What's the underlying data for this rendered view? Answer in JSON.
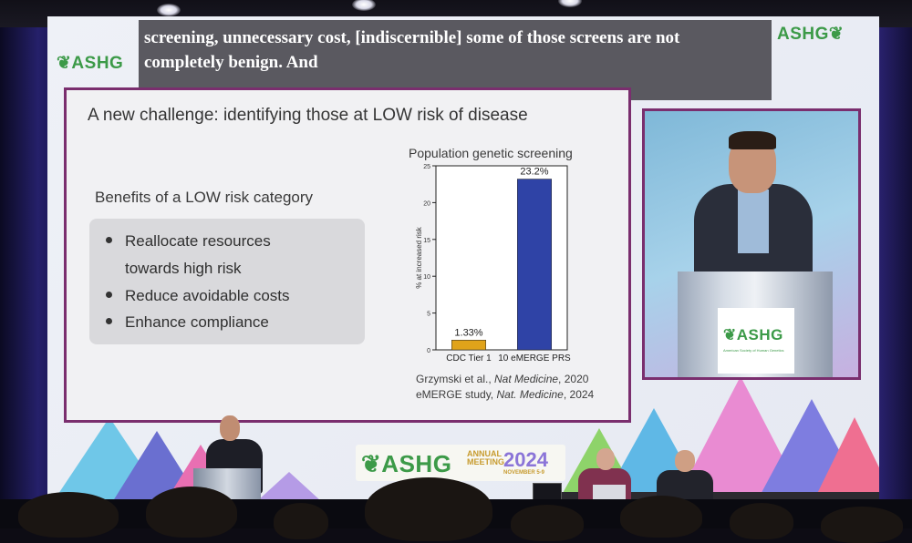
{
  "caption": {
    "line1": "screening, unnecessary cost, [indiscernible] some of those screens are not",
    "line2": "completely benign.  And"
  },
  "logos": {
    "left": "ASHG",
    "right": "ASHG",
    "podium": "ASHG",
    "podium_subtitle": "American Society of Human Genetics",
    "banner_brand": "ASHG",
    "banner_annual": "ANNUAL",
    "banner_meeting": "MEETING",
    "banner_year": "2024",
    "banner_dates": "NOVEMBER 5-9"
  },
  "slide": {
    "title": "A new challenge: identifying those at LOW risk of disease",
    "benefits_title": "Benefits of a LOW risk category",
    "bullets": [
      "Reallocate resources towards high risk",
      "Reduce avoidable costs",
      "Enhance compliance"
    ],
    "bullet1_line1": "Reallocate resources",
    "bullet1_line2": "towards high risk",
    "references": {
      "ref1_text": "Grzymski et al., ",
      "ref1_journal": "Nat Medicine",
      "ref1_year": ", 2020",
      "ref2_text": "eMERGE study, ",
      "ref2_journal": "Nat. Medicine",
      "ref2_year": ", 2024"
    }
  },
  "chart_data": {
    "type": "bar",
    "title": "Population genetic screening",
    "ylabel": "% at increased risk",
    "categories": [
      "CDC Tier 1",
      "10 eMERGE PRS"
    ],
    "values": [
      1.33,
      23.2
    ],
    "data_labels": [
      "1.33%",
      "23.2%"
    ],
    "ylim": [
      0,
      25
    ],
    "yticks": [
      0,
      5,
      10,
      15,
      20,
      25
    ],
    "colors": [
      "#e0a31a",
      "#2f43a6"
    ]
  },
  "colors": {
    "slide_border": "#7a2e6e",
    "caption_bg": "#5a5960",
    "ashg_green": "#3c9a48"
  }
}
